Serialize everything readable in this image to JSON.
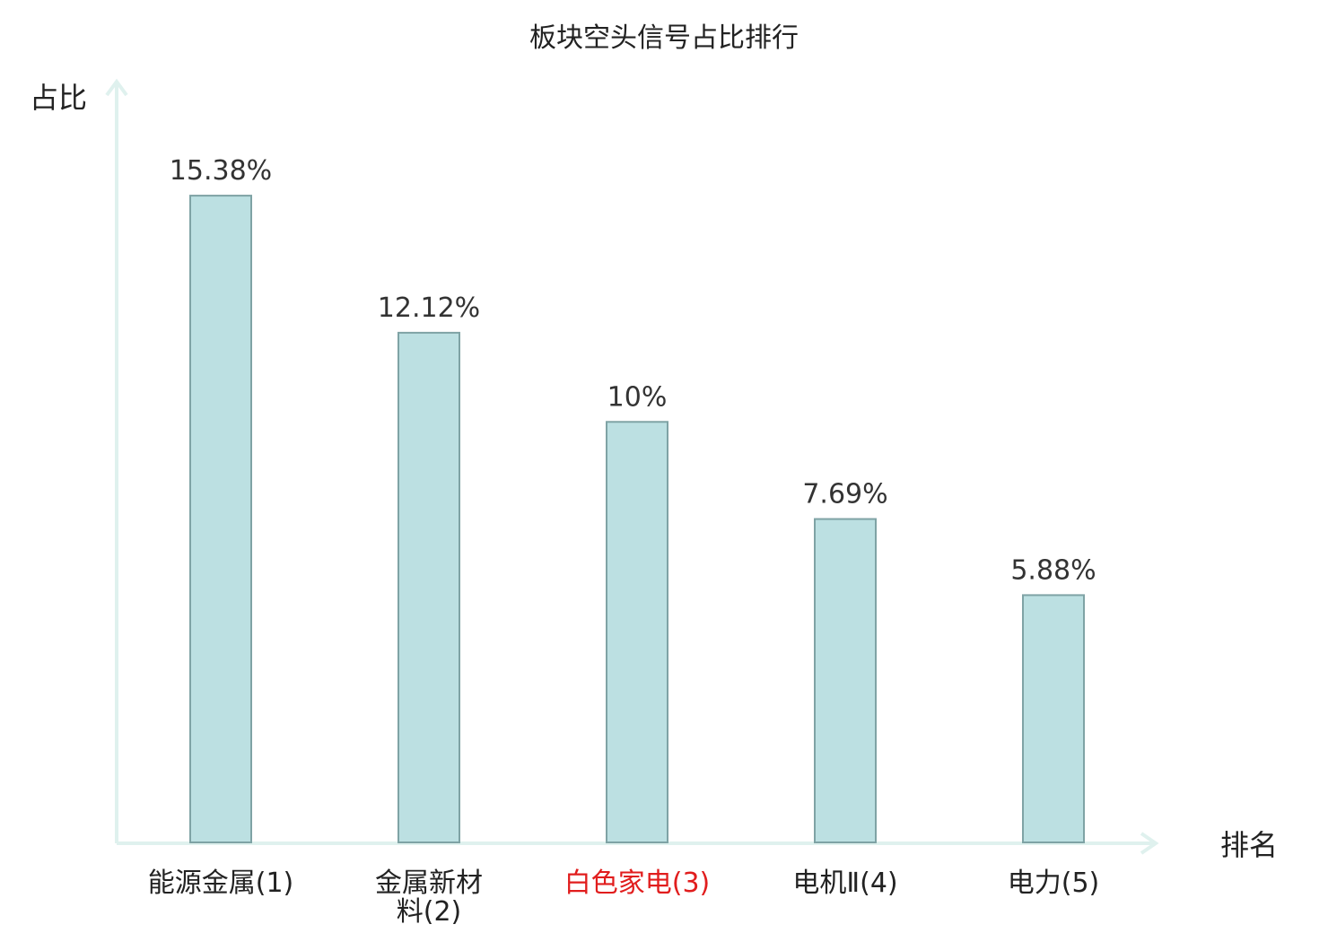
{
  "chart_data": {
    "type": "bar",
    "title": "板块空头信号占比排行",
    "ylabel": "占比",
    "xlabel": "排名",
    "categories": [
      {
        "lines": [
          "能源金属(1)"
        ],
        "highlight": false
      },
      {
        "lines": [
          "金属新材",
          "料(2)"
        ],
        "highlight": false
      },
      {
        "lines": [
          "白色家电(3)"
        ],
        "highlight": true
      },
      {
        "lines": [
          "电机Ⅱ(4)"
        ],
        "highlight": false
      },
      {
        "lines": [
          "电力(5)"
        ],
        "highlight": false
      }
    ],
    "values": [
      15.38,
      12.12,
      10,
      7.69,
      5.88
    ],
    "value_labels": [
      "15.38%",
      "12.12%",
      "10%",
      "7.69%",
      "5.88%"
    ],
    "ylim": [
      0,
      18.07
    ],
    "grid": false,
    "colors": {
      "bar_fill": "#bce0e2",
      "bar_stroke": "#7fa3a5",
      "axis": "#dff1ee",
      "highlight_text": "#e11d1d",
      "text": "#222222"
    }
  }
}
